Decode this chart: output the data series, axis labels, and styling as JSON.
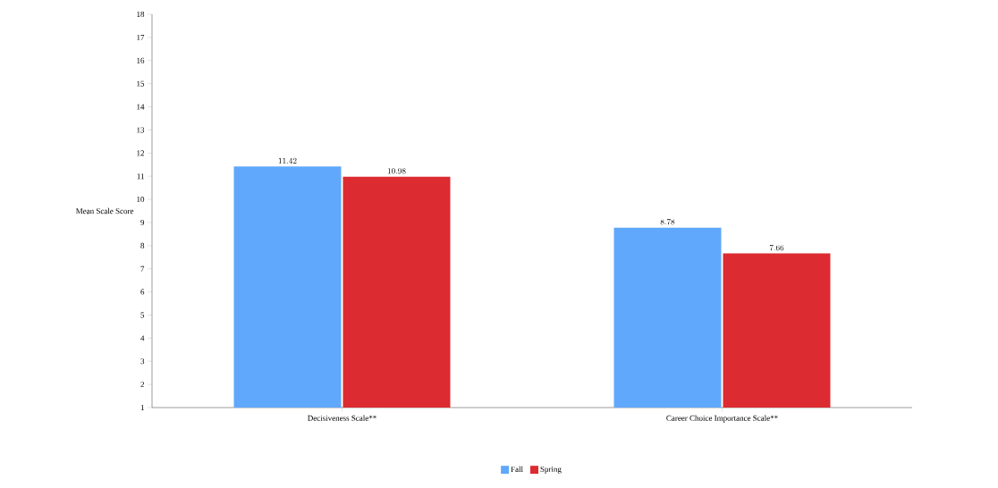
{
  "chart_data": {
    "type": "bar",
    "ylabel": "Mean Scale Score",
    "categories": [
      "Decisiveness Scale**",
      "Career Choice Importance Scale**"
    ],
    "series": [
      {
        "name": "Fall",
        "color": "#60a8fc",
        "values": [
          11.42,
          8.78
        ]
      },
      {
        "name": "Spring",
        "color": "#dc2b31",
        "values": [
          10.98,
          7.66
        ]
      }
    ],
    "ylim": [
      1,
      18
    ],
    "yticks": [
      1,
      2,
      3,
      4,
      5,
      6,
      7,
      8,
      9,
      10,
      11,
      12,
      13,
      14,
      15,
      16,
      17,
      18
    ],
    "data_labels": true,
    "legend": "bottom",
    "grid": false
  }
}
